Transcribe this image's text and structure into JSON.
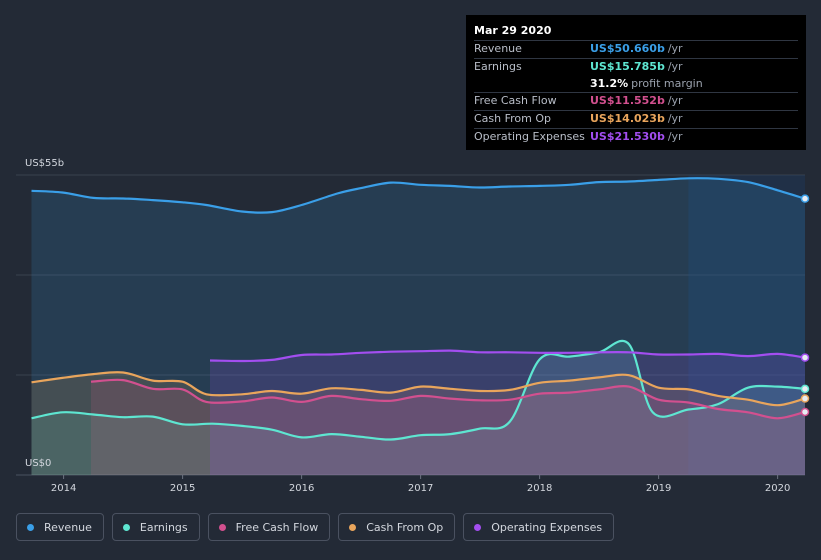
{
  "tooltip": {
    "date": "Mar 29 2020",
    "rows": [
      {
        "label": "Revenue",
        "value": "US$50.660b",
        "unit": "/yr",
        "color": "#3a9fe8"
      },
      {
        "label": "Earnings",
        "value": "US$15.785b",
        "unit": "/yr",
        "color": "#5ee6d1"
      },
      {
        "label": "",
        "value": "31.2%",
        "unit": "profit margin",
        "color": "#ffffff"
      },
      {
        "label": "Free Cash Flow",
        "value": "US$11.552b",
        "unit": "/yr",
        "color": "#d2508f"
      },
      {
        "label": "Cash From Op",
        "value": "US$14.023b",
        "unit": "/yr",
        "color": "#e9a55c"
      },
      {
        "label": "Operating Expenses",
        "value": "US$21.530b",
        "unit": "/yr",
        "color": "#a34ef0"
      }
    ]
  },
  "legend": [
    {
      "label": "Revenue",
      "color": "#3a9fe8"
    },
    {
      "label": "Earnings",
      "color": "#5ee6d1"
    },
    {
      "label": "Free Cash Flow",
      "color": "#d2508f"
    },
    {
      "label": "Cash From Op",
      "color": "#e9a55c"
    },
    {
      "label": "Operating Expenses",
      "color": "#a34ef0"
    }
  ],
  "chart_data": {
    "type": "area",
    "ylabel_top": "US$55b",
    "ylabel_bottom": "US$0",
    "ylim": [
      0,
      55
    ],
    "xlim": [
      2013.6,
      2020.23
    ],
    "xticks": [
      "2014",
      "2015",
      "2016",
      "2017",
      "2018",
      "2019",
      "2020"
    ],
    "series": [
      {
        "name": "Revenue",
        "color": "#3a9fe8",
        "points": [
          [
            2013.73,
            52.1
          ],
          [
            2013.99,
            51.8
          ],
          [
            2014.25,
            50.8
          ],
          [
            2014.5,
            50.7
          ],
          [
            2014.75,
            50.4
          ],
          [
            2015.0,
            50.0
          ],
          [
            2015.2,
            49.5
          ],
          [
            2015.5,
            48.3
          ],
          [
            2015.75,
            48.2
          ],
          [
            2016.0,
            49.5
          ],
          [
            2016.3,
            51.6
          ],
          [
            2016.5,
            52.6
          ],
          [
            2016.75,
            53.6
          ],
          [
            2017.0,
            53.2
          ],
          [
            2017.25,
            53.0
          ],
          [
            2017.5,
            52.7
          ],
          [
            2017.75,
            52.9
          ],
          [
            2018.0,
            53.0
          ],
          [
            2018.25,
            53.2
          ],
          [
            2018.5,
            53.7
          ],
          [
            2018.75,
            53.8
          ],
          [
            2019.0,
            54.1
          ],
          [
            2019.25,
            54.4
          ],
          [
            2019.5,
            54.3
          ],
          [
            2019.75,
            53.7
          ],
          [
            2020.0,
            52.2
          ],
          [
            2020.23,
            50.66
          ]
        ]
      },
      {
        "name": "Earnings",
        "color": "#5ee6d1",
        "points": [
          [
            2013.73,
            10.4
          ],
          [
            2013.99,
            11.5
          ],
          [
            2014.25,
            11.1
          ],
          [
            2014.5,
            10.6
          ],
          [
            2014.75,
            10.7
          ],
          [
            2015.0,
            9.3
          ],
          [
            2015.25,
            9.4
          ],
          [
            2015.5,
            9.0
          ],
          [
            2015.75,
            8.3
          ],
          [
            2016.0,
            6.9
          ],
          [
            2016.25,
            7.5
          ],
          [
            2016.5,
            7.0
          ],
          [
            2016.75,
            6.5
          ],
          [
            2017.0,
            7.3
          ],
          [
            2017.25,
            7.5
          ],
          [
            2017.5,
            8.5
          ],
          [
            2017.75,
            9.8
          ],
          [
            2018.0,
            21.2
          ],
          [
            2018.25,
            21.7
          ],
          [
            2018.5,
            22.5
          ],
          [
            2018.75,
            24.0
          ],
          [
            2018.95,
            11.5
          ],
          [
            2019.25,
            12.0
          ],
          [
            2019.5,
            13.0
          ],
          [
            2019.75,
            16.0
          ],
          [
            2020.0,
            16.2
          ],
          [
            2020.23,
            15.785
          ]
        ]
      },
      {
        "name": "Free Cash Flow",
        "color": "#d2508f",
        "points": [
          [
            2014.23,
            17.1
          ],
          [
            2014.5,
            17.4
          ],
          [
            2014.75,
            15.8
          ],
          [
            2015.0,
            15.7
          ],
          [
            2015.2,
            13.4
          ],
          [
            2015.5,
            13.5
          ],
          [
            2015.75,
            14.2
          ],
          [
            2016.0,
            13.4
          ],
          [
            2016.25,
            14.5
          ],
          [
            2016.5,
            13.9
          ],
          [
            2016.75,
            13.6
          ],
          [
            2017.0,
            14.5
          ],
          [
            2017.25,
            14.0
          ],
          [
            2017.5,
            13.7
          ],
          [
            2017.75,
            13.8
          ],
          [
            2018.0,
            14.9
          ],
          [
            2018.25,
            15.1
          ],
          [
            2018.5,
            15.7
          ],
          [
            2018.75,
            16.2
          ],
          [
            2019.0,
            13.8
          ],
          [
            2019.25,
            13.3
          ],
          [
            2019.5,
            12.1
          ],
          [
            2019.75,
            11.5
          ],
          [
            2020.0,
            10.4
          ],
          [
            2020.23,
            11.552
          ]
        ]
      },
      {
        "name": "Cash From Op",
        "color": "#e9a55c",
        "points": [
          [
            2013.73,
            17.0
          ],
          [
            2013.99,
            17.8
          ],
          [
            2014.25,
            18.5
          ],
          [
            2014.5,
            18.8
          ],
          [
            2014.75,
            17.3
          ],
          [
            2015.0,
            17.1
          ],
          [
            2015.2,
            14.8
          ],
          [
            2015.5,
            14.8
          ],
          [
            2015.75,
            15.4
          ],
          [
            2016.0,
            14.9
          ],
          [
            2016.25,
            15.9
          ],
          [
            2016.5,
            15.6
          ],
          [
            2016.75,
            15.1
          ],
          [
            2017.0,
            16.2
          ],
          [
            2017.25,
            15.8
          ],
          [
            2017.5,
            15.4
          ],
          [
            2017.75,
            15.6
          ],
          [
            2018.0,
            16.9
          ],
          [
            2018.25,
            17.3
          ],
          [
            2018.5,
            17.9
          ],
          [
            2018.75,
            18.3
          ],
          [
            2019.0,
            16.0
          ],
          [
            2019.25,
            15.7
          ],
          [
            2019.5,
            14.5
          ],
          [
            2019.75,
            13.8
          ],
          [
            2020.0,
            12.8
          ],
          [
            2020.23,
            14.023
          ]
        ]
      },
      {
        "name": "Operating Expenses",
        "color": "#a34ef0",
        "points": [
          [
            2015.23,
            21.0
          ],
          [
            2015.5,
            20.9
          ],
          [
            2015.75,
            21.1
          ],
          [
            2016.0,
            22.0
          ],
          [
            2016.25,
            22.1
          ],
          [
            2016.5,
            22.4
          ],
          [
            2016.75,
            22.6
          ],
          [
            2017.0,
            22.7
          ],
          [
            2017.25,
            22.8
          ],
          [
            2017.5,
            22.5
          ],
          [
            2017.75,
            22.5
          ],
          [
            2018.0,
            22.4
          ],
          [
            2018.25,
            22.4
          ],
          [
            2018.5,
            22.5
          ],
          [
            2018.75,
            22.5
          ],
          [
            2019.0,
            22.1
          ],
          [
            2019.25,
            22.1
          ],
          [
            2019.5,
            22.2
          ],
          [
            2019.75,
            21.8
          ],
          [
            2020.0,
            22.2
          ],
          [
            2020.23,
            21.53
          ]
        ]
      }
    ]
  }
}
